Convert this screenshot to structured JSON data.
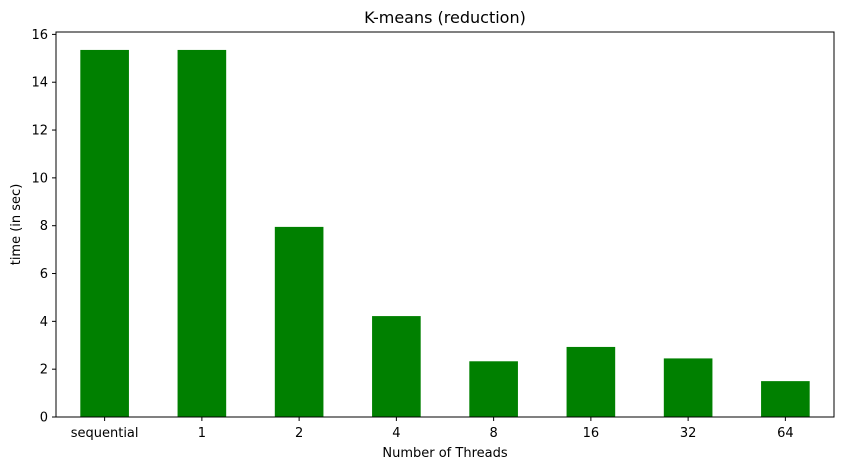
{
  "chart_data": {
    "type": "bar",
    "title": "K-means (reduction)",
    "xlabel": "Number of Threads",
    "ylabel": "time (in sec)",
    "categories": [
      "sequential",
      "1",
      "2",
      "4",
      "8",
      "16",
      "32",
      "64"
    ],
    "values": [
      15.35,
      15.35,
      7.95,
      4.22,
      2.33,
      2.93,
      2.45,
      1.5
    ],
    "ylim": [
      0,
      16.1
    ],
    "yticks": [
      0,
      2,
      4,
      6,
      8,
      10,
      12,
      14,
      16
    ],
    "bar_color": "#008000",
    "grid": false,
    "legend": "none"
  }
}
